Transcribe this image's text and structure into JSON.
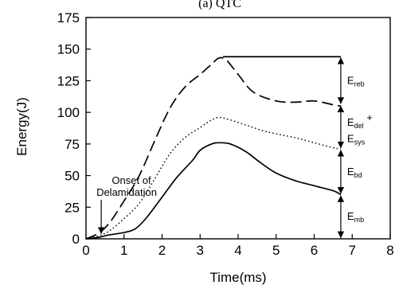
{
  "chart_data": {
    "type": "line",
    "title": "(a) QTC",
    "xlabel": "Time(ms)",
    "ylabel": "Energy(J)",
    "xlim": [
      0,
      8
    ],
    "ylim": [
      0,
      175
    ],
    "x_ticks": [
      0,
      1,
      2,
      3,
      4,
      5,
      6,
      7,
      8
    ],
    "y_ticks": [
      0,
      25,
      50,
      75,
      100,
      125,
      150,
      175
    ],
    "series": [
      {
        "style": "dashed",
        "x": [
          0.0,
          0.3,
          0.6,
          1.0,
          1.4,
          1.8,
          2.2,
          2.6,
          3.0,
          3.3,
          3.5,
          3.7,
          4.0,
          4.4,
          5.0,
          5.5,
          6.0,
          6.5,
          6.7
        ],
        "y": [
          0,
          4,
          12,
          30,
          50,
          77,
          103,
          120,
          130,
          138,
          143,
          141,
          130,
          116,
          109,
          108,
          109,
          106,
          105
        ]
      },
      {
        "style": "dotted",
        "x": [
          0.0,
          0.3,
          0.6,
          1.0,
          1.4,
          1.8,
          2.2,
          2.6,
          3.0,
          3.3,
          3.5,
          3.8,
          4.2,
          4.6,
          5.0,
          5.5,
          6.0,
          6.5,
          6.7
        ],
        "y": [
          0,
          2,
          6,
          16,
          28,
          47,
          67,
          80,
          88,
          94,
          96,
          94,
          90,
          86,
          83,
          80,
          76,
          72,
          71
        ]
      },
      {
        "style": "solid",
        "x": [
          0.0,
          0.3,
          0.6,
          1.0,
          1.3,
          1.6,
          2.0,
          2.4,
          2.8,
          3.0,
          3.3,
          3.5,
          3.8,
          4.2,
          4.6,
          5.0,
          5.5,
          6.0,
          6.5,
          6.7
        ],
        "y": [
          0,
          1,
          3,
          5,
          8,
          17,
          33,
          49,
          62,
          70,
          75,
          76,
          75,
          69,
          60,
          52,
          46,
          42,
          38,
          35
        ]
      }
    ],
    "reference_line": {
      "x": [
        3.6,
        6.7
      ],
      "y": 144
    },
    "annotations": {
      "onset": {
        "line1": "Onset of",
        "line2": "Delamidation",
        "x": 0.4,
        "y": 2
      },
      "e_reb": {
        "main": "E",
        "sub": "reb",
        "from": 144,
        "to": 106
      },
      "e_del": {
        "main": "E",
        "sub": "del",
        "suffix": " +",
        "from": 106,
        "to": 71
      },
      "e_sys": {
        "main": "E",
        "sub": "sys"
      },
      "e_bd": {
        "main": "E",
        "sub": "bd",
        "from": 71,
        "to": 35
      },
      "e_mb": {
        "main": "E",
        "sub": "mb",
        "from": 35,
        "to": 0
      }
    }
  }
}
